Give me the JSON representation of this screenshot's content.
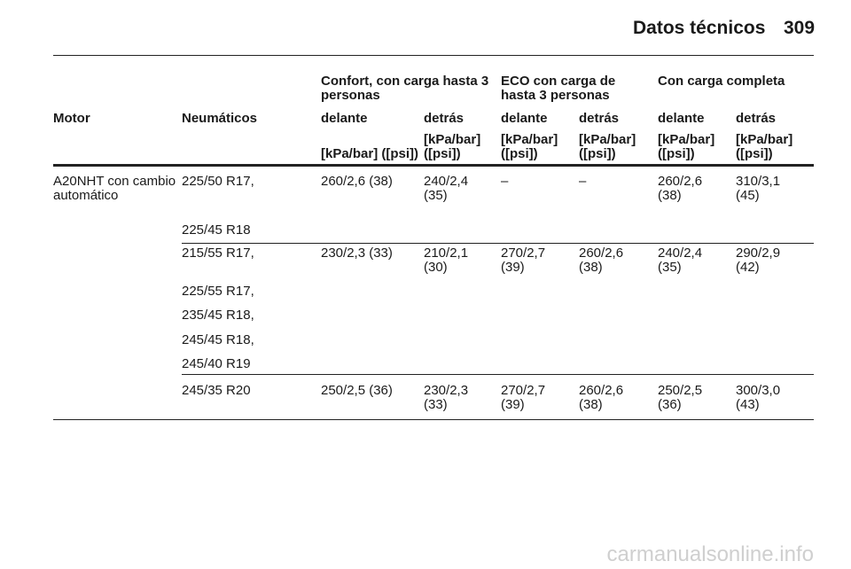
{
  "header": {
    "title": "Datos técnicos",
    "page": "309"
  },
  "table": {
    "group_headers": [
      "Confort, con carga hasta 3 personas",
      "ECO con carga de hasta 3 personas",
      "Con carga completa"
    ],
    "columns": [
      "Motor",
      "Neumáticos",
      "delante",
      "detrás",
      "delante",
      "detrás",
      "delante",
      "detrás"
    ],
    "units": [
      "[kPa/bar] ([psi])",
      "[kPa/bar] ([psi])",
      "[kPa/bar] ([psi])",
      "[kPa/bar] ([psi])",
      "[kPa/bar] ([psi])",
      "[kPa/bar] ([psi])"
    ],
    "rows": [
      {
        "motor": "A20NHT con cambio automático",
        "tyres": [
          "225/50 R17,",
          "225/45 R18"
        ],
        "pressures": [
          "260/2,6 (38)",
          "240/2,4 (35)",
          "–",
          "–",
          "260/2,6 (38)",
          "310/3,1 (45)"
        ]
      },
      {
        "tyres": [
          "215/55 R17,",
          "225/55 R17,",
          "235/45 R18,",
          "245/45 R18,",
          "245/40 R19"
        ],
        "pressures": [
          "230/2,3 (33)",
          "210/2,1 (30)",
          "270/2,7 (39)",
          "260/2,6 (38)",
          "240/2,4 (35)",
          "290/2,9 (42)"
        ]
      },
      {
        "tyres": [
          "245/35 R20"
        ],
        "pressures": [
          "250/2,5 (36)",
          "230/2,3 (33)",
          "270/2,7 (39)",
          "260/2,6 (38)",
          "250/2,5 (36)",
          "300/3,0 (43)"
        ]
      }
    ]
  },
  "watermark": "carmanualsonline.info"
}
